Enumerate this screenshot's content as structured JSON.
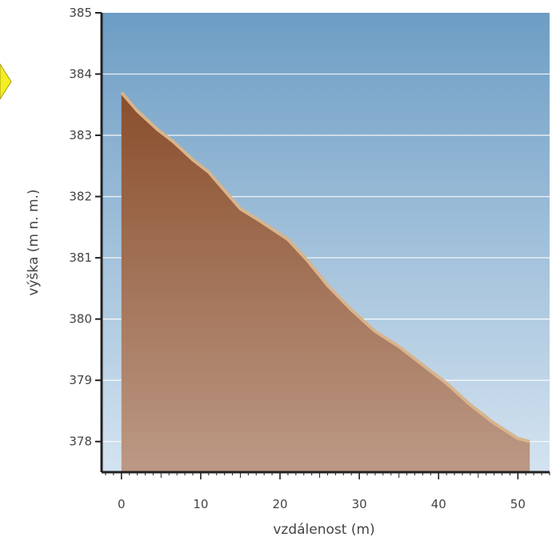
{
  "chart_data": {
    "type": "area",
    "title": "",
    "xlabel": "vzdálenost (m)",
    "ylabel": "výška (m n. m.)",
    "xlim": [
      -2.5,
      54
    ],
    "ylim": [
      377.5,
      385
    ],
    "x_ticks": [
      0,
      10,
      20,
      30,
      40,
      50
    ],
    "y_ticks": [
      378,
      379,
      380,
      381,
      382,
      383,
      384,
      385
    ],
    "grid": true,
    "legend": "none",
    "series": [
      {
        "x": [
          0,
          2,
          4.5,
          6.5,
          9,
          11,
          13,
          15,
          17.5,
          21,
          23.5,
          26,
          29,
          32,
          35,
          38,
          41,
          44,
          47,
          50,
          51.5
        ],
        "y": [
          383.7,
          383.4,
          383.1,
          382.9,
          382.6,
          382.4,
          382.1,
          381.8,
          381.6,
          381.3,
          380.95,
          380.55,
          380.15,
          379.8,
          379.55,
          379.25,
          378.95,
          378.6,
          378.3,
          378.05,
          378.0
        ]
      }
    ],
    "colors": {
      "sky_top": "#6d9dc4",
      "sky_bottom": "#d4e3f0",
      "terrain_top": "#8a4e2c",
      "terrain_bottom": "#bc9985",
      "terrain_edge": "#d8b48c",
      "grid": "#ffffff",
      "axis": "#222222",
      "pointer": "#f3ef24"
    }
  }
}
